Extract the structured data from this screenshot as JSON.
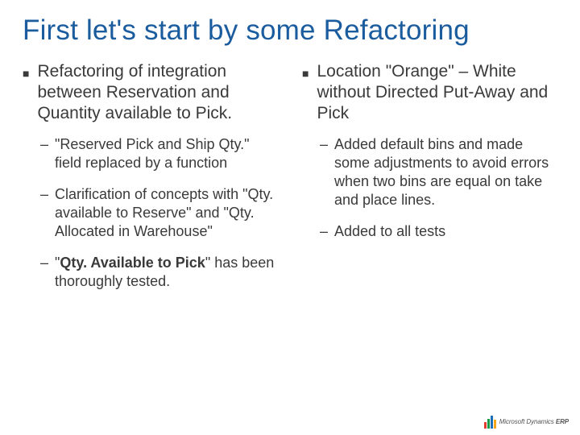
{
  "title": "First let's start by some Refactoring",
  "left": {
    "heading": "Refactoring of integration between Reservation and Quantity available to Pick.",
    "items": [
      {
        "pre": "\"Reserved Pick and Ship Qty.\" field replaced by a function"
      },
      {
        "pre": "Clarification of concepts with \"Qty. available to Reserve\" and \"Qty. Allocated in Warehouse\""
      },
      {
        "pre": "\"",
        "bold": "Qty. Available to Pick",
        "post": "\" has been thoroughly tested."
      }
    ]
  },
  "right": {
    "heading": "Location \"Orange\" – White without Directed Put-Away and Pick",
    "items": [
      {
        "pre": "Added default bins and made some adjustments to avoid errors when two bins are equal on take and place lines."
      },
      {
        "pre": "Added to all tests"
      }
    ]
  },
  "logo": {
    "bars": [
      {
        "h": 8,
        "c": "#e23a2e"
      },
      {
        "h": 12,
        "c": "#169c49"
      },
      {
        "h": 16,
        "c": "#1d6fb8"
      },
      {
        "h": 11,
        "c": "#f6a81c"
      }
    ],
    "brand": "Microsoft Dynamics",
    "suffix": "ERP"
  },
  "colors": {
    "title": "#1a5c9e",
    "text": "#3a3a3a",
    "background": "#ffffff"
  }
}
